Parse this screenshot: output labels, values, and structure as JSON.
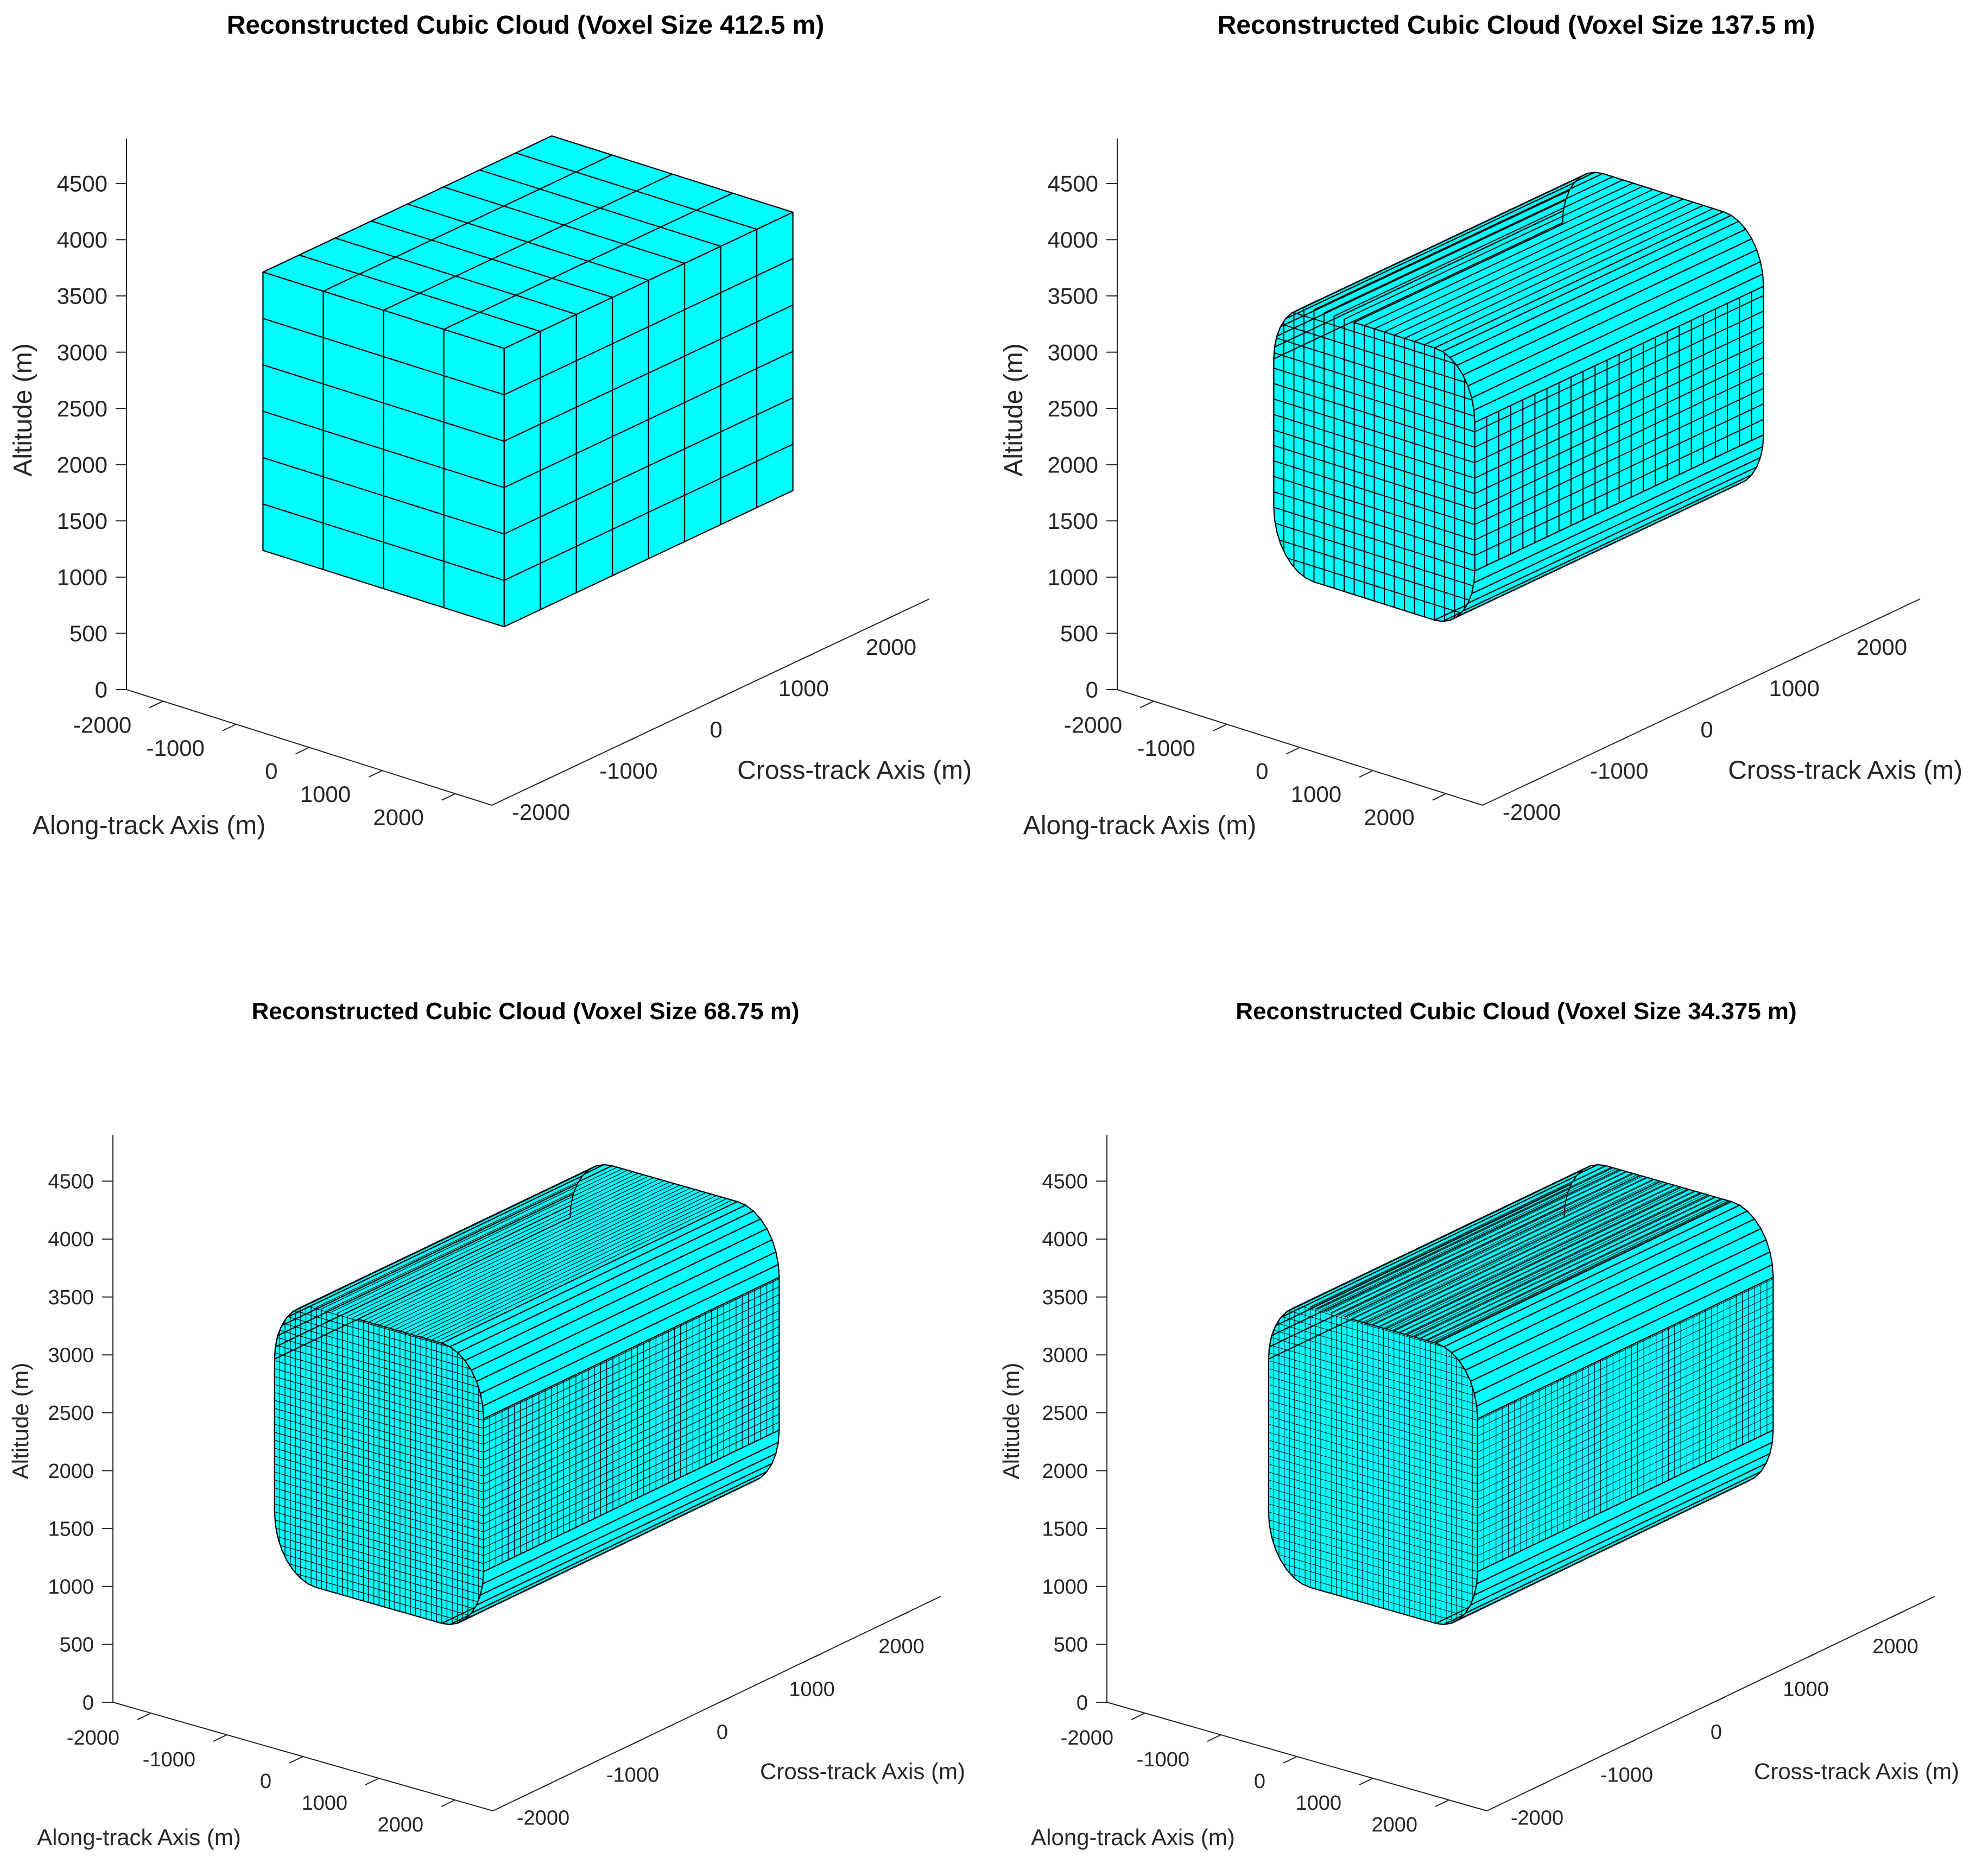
{
  "figure": {
    "face_color": "#00FFFF",
    "edge_color": "#000000",
    "axis_color": "#262626"
  },
  "chart_data": [
    {
      "type": "voxel-3d",
      "title": "Reconstructed Cubic Cloud (Voxel Size 412.5 m)",
      "voxel_size_m": 412.5,
      "xlabel": "Along-track Axis (m)",
      "ylabel": "Cross-track Axis (m)",
      "zlabel": "Altitude (m)",
      "xlim": [
        -2500,
        2500
      ],
      "ylim": [
        -2500,
        2500
      ],
      "zlim": [
        0,
        4900
      ],
      "xticks": [
        -2000,
        -1000,
        0,
        1000,
        2000
      ],
      "yticks": [
        -2000,
        -1000,
        0,
        1000,
        2000
      ],
      "zticks": [
        0,
        500,
        1000,
        1500,
        2000,
        2500,
        3000,
        3500,
        4000,
        4500
      ],
      "shape": "box",
      "box": {
        "x": [
          -1650,
          1650
        ],
        "y": [
          -1650,
          1650
        ],
        "z": [
          1100,
          3575
        ]
      }
    },
    {
      "type": "voxel-3d",
      "title": "Reconstructed Cubic Cloud (Voxel Size 137.5 m)",
      "voxel_size_m": 137.5,
      "xlabel": "Along-track Axis (m)",
      "ylabel": "Cross-track Axis (m)",
      "zlabel": "Altitude (m)",
      "xlim": [
        -2500,
        2500
      ],
      "ylim": [
        -2500,
        2500
      ],
      "zlim": [
        0,
        4900
      ],
      "xticks": [
        -2000,
        -1000,
        0,
        1000,
        2000
      ],
      "yticks": [
        -2000,
        -1000,
        0,
        1000,
        2000
      ],
      "zticks": [
        0,
        500,
        1000,
        1500,
        2000,
        2500,
        3000,
        3500,
        4000,
        4500
      ],
      "shape": "rounded-slab",
      "slab": {
        "x_half": 1375,
        "y_half": 1650,
        "z_center": 2200,
        "z_half": 1210,
        "corner_radius": 550
      }
    },
    {
      "type": "voxel-3d",
      "title": "Reconstructed Cubic Cloud (Voxel Size 68.75 m)",
      "voxel_size_m": 68.75,
      "xlabel": "Along-track Axis (m)",
      "ylabel": "Cross-track Axis (m)",
      "zlabel": "Altitude (m)",
      "xlim": [
        -2500,
        2500
      ],
      "ylim": [
        -2500,
        2500
      ],
      "zlim": [
        0,
        4900
      ],
      "xticks": [
        -2000,
        -1000,
        0,
        1000,
        2000
      ],
      "yticks": [
        -2000,
        -1000,
        0,
        1000,
        2000
      ],
      "zticks": [
        0,
        500,
        1000,
        1500,
        2000,
        2500,
        3000,
        3500,
        4000,
        4500
      ],
      "shape": "rounded-slab",
      "slab": {
        "x_half": 1375,
        "y_half": 1650,
        "z_center": 2200,
        "z_half": 1210,
        "corner_radius": 550
      }
    },
    {
      "type": "voxel-3d",
      "title": "Reconstructed Cubic Cloud (Voxel Size 34.375 m)",
      "voxel_size_m": 34.375,
      "xlabel": "Along-track Axis (m)",
      "ylabel": "Cross-track Axis (m)",
      "zlabel": "Altitude (m)",
      "xlim": [
        -2500,
        2500
      ],
      "ylim": [
        -2500,
        2500
      ],
      "zlim": [
        0,
        4900
      ],
      "xticks": [
        -2000,
        -1000,
        0,
        1000,
        2000
      ],
      "yticks": [
        -2000,
        -1000,
        0,
        1000,
        2000
      ],
      "zticks": [
        0,
        500,
        1000,
        1500,
        2000,
        2500,
        3000,
        3500,
        4000,
        4500
      ],
      "shape": "rounded-slab",
      "slab": {
        "x_half": 1375,
        "y_half": 1650,
        "z_center": 2200,
        "z_half": 1210,
        "corner_radius": 550
      }
    }
  ]
}
